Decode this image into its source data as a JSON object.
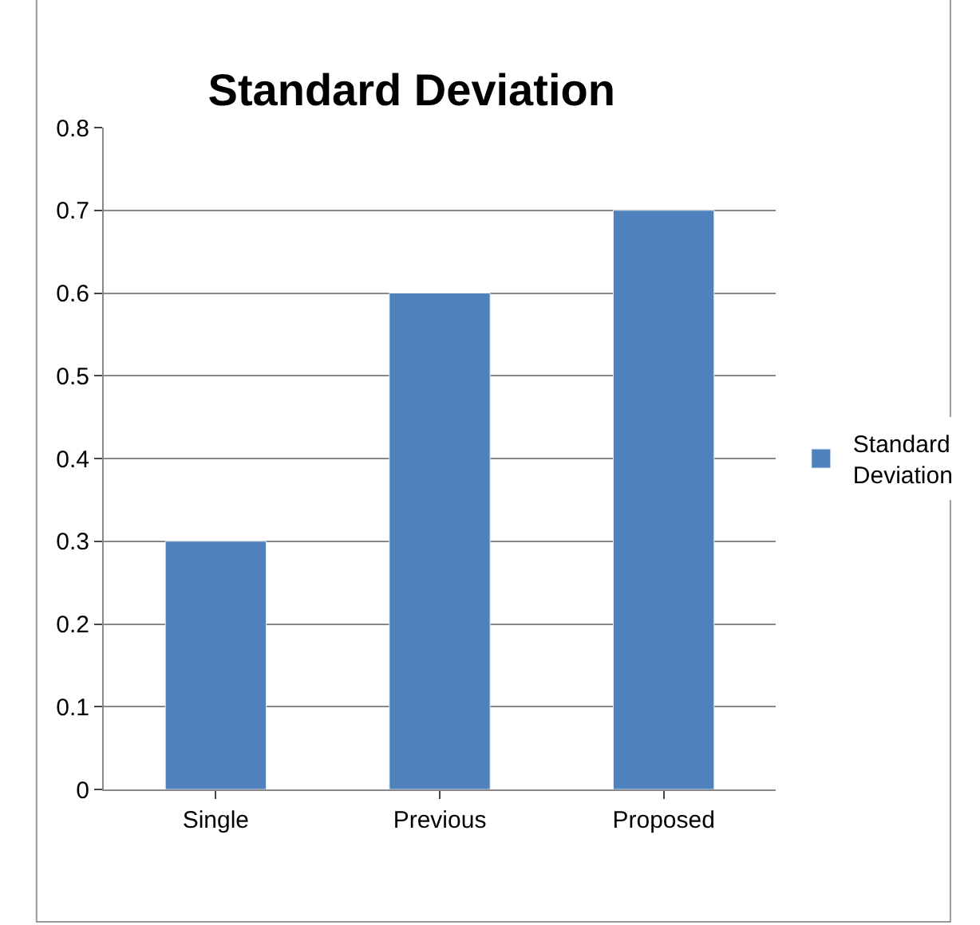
{
  "chart_data": {
    "type": "bar",
    "title": "Standard Deviation",
    "categories": [
      "Single",
      "Previous",
      "Proposed"
    ],
    "series": [
      {
        "name": "Standard Deviation",
        "color": "#4f81bd",
        "values": [
          0.3,
          0.6,
          0.7
        ]
      }
    ],
    "ylim": [
      0,
      0.8
    ],
    "yticks": [
      0,
      0.1,
      0.2,
      0.3,
      0.4,
      0.5,
      0.6,
      0.7,
      0.8
    ],
    "grid": "y",
    "legend": "right"
  }
}
